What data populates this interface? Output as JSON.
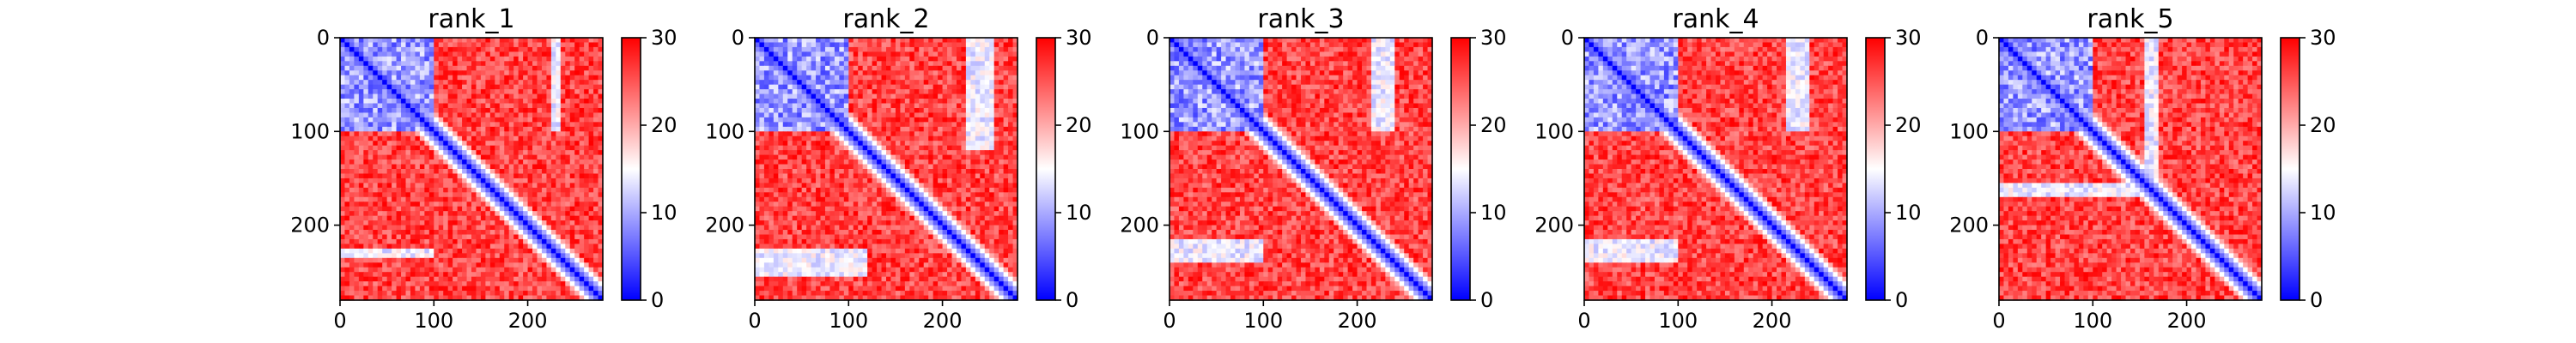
{
  "chart_data": [
    {
      "type": "heatmap",
      "title": "rank_1",
      "x_ticks": [
        0,
        100,
        200
      ],
      "y_ticks": [
        0,
        100,
        200
      ],
      "xlim": [
        0,
        280
      ],
      "ylim": [
        280,
        0
      ],
      "colorbar": {
        "min": 0,
        "max": 30,
        "ticks": [
          0,
          10,
          20,
          30
        ]
      },
      "colormap": [
        "#0000ff",
        "#ffffff",
        "#ff0000"
      ],
      "grid": false,
      "blue_blocks": [
        [
          0,
          0,
          100,
          100
        ]
      ],
      "off_diagonal_contacts": [
        [
          225,
          235,
          0,
          100
        ],
        [
          0,
          100,
          225,
          235
        ]
      ]
    },
    {
      "type": "heatmap",
      "title": "rank_2",
      "x_ticks": [
        0,
        100,
        200
      ],
      "y_ticks": [
        0,
        100,
        200
      ],
      "xlim": [
        0,
        280
      ],
      "ylim": [
        280,
        0
      ],
      "colorbar": {
        "min": 0,
        "max": 30,
        "ticks": [
          0,
          10,
          20,
          30
        ]
      },
      "colormap": [
        "#0000ff",
        "#ffffff",
        "#ff0000"
      ],
      "grid": false,
      "blue_blocks": [
        [
          0,
          0,
          100,
          100
        ]
      ],
      "off_diagonal_contacts": [
        [
          225,
          255,
          0,
          120
        ],
        [
          0,
          120,
          225,
          255
        ]
      ]
    },
    {
      "type": "heatmap",
      "title": "rank_3",
      "x_ticks": [
        0,
        100,
        200
      ],
      "y_ticks": [
        0,
        100,
        200
      ],
      "xlim": [
        0,
        280
      ],
      "ylim": [
        280,
        0
      ],
      "colorbar": {
        "min": 0,
        "max": 30,
        "ticks": [
          0,
          10,
          20,
          30
        ]
      },
      "colormap": [
        "#0000ff",
        "#ffffff",
        "#ff0000"
      ],
      "grid": false,
      "blue_blocks": [
        [
          0,
          0,
          100,
          100
        ]
      ],
      "off_diagonal_contacts": [
        [
          215,
          240,
          0,
          100
        ],
        [
          0,
          100,
          215,
          240
        ]
      ]
    },
    {
      "type": "heatmap",
      "title": "rank_4",
      "x_ticks": [
        0,
        100,
        200
      ],
      "y_ticks": [
        0,
        100,
        200
      ],
      "xlim": [
        0,
        280
      ],
      "ylim": [
        280,
        0
      ],
      "colorbar": {
        "min": 0,
        "max": 30,
        "ticks": [
          0,
          10,
          20,
          30
        ]
      },
      "colormap": [
        "#0000ff",
        "#ffffff",
        "#ff0000"
      ],
      "grid": false,
      "blue_blocks": [
        [
          0,
          0,
          100,
          100
        ]
      ],
      "off_diagonal_contacts": [
        [
          215,
          240,
          0,
          100
        ],
        [
          0,
          100,
          215,
          240
        ]
      ]
    },
    {
      "type": "heatmap",
      "title": "rank_5",
      "x_ticks": [
        0,
        100,
        200
      ],
      "y_ticks": [
        0,
        100,
        200
      ],
      "xlim": [
        0,
        280
      ],
      "ylim": [
        280,
        0
      ],
      "colorbar": {
        "min": 0,
        "max": 30,
        "ticks": [
          0,
          10,
          20,
          30
        ]
      },
      "colormap": [
        "#0000ff",
        "#ffffff",
        "#ff0000"
      ],
      "grid": false,
      "blue_blocks": [
        [
          0,
          0,
          100,
          100
        ]
      ],
      "off_diagonal_contacts": [
        [
          155,
          170,
          0,
          160
        ],
        [
          0,
          160,
          155,
          170
        ]
      ]
    }
  ]
}
